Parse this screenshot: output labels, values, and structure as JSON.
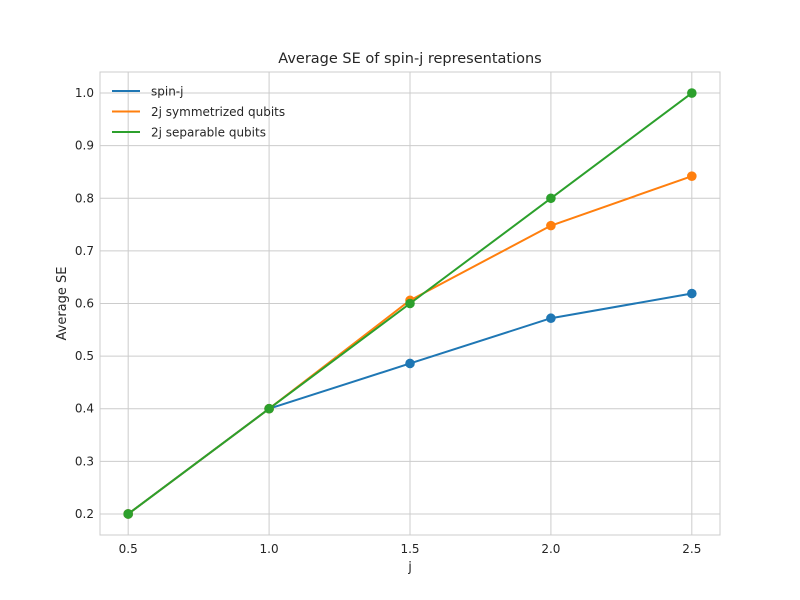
{
  "chart_data": {
    "type": "line",
    "title": "Average SE of spin-j representations",
    "xlabel": "j",
    "ylabel": "Average SE",
    "x": [
      0.5,
      1.0,
      1.5,
      2.0,
      2.5
    ],
    "x_ticks": [
      "0.5",
      "1.0",
      "1.5",
      "2.0",
      "2.5"
    ],
    "y_ticks": [
      "0.2",
      "0.3",
      "0.4",
      "0.5",
      "0.6",
      "0.7",
      "0.8",
      "0.9",
      "1.0"
    ],
    "xlim": [
      0.4,
      2.6
    ],
    "ylim": [
      0.16,
      1.04
    ],
    "grid": true,
    "legend_position": "top-left",
    "series": [
      {
        "name": "spin-j",
        "color": "#1f77b4",
        "values": [
          0.2,
          0.4,
          0.486,
          0.572,
          0.619
        ]
      },
      {
        "name": "2j symmetrized qubits",
        "color": "#ff7f0e",
        "values": [
          0.2,
          0.4,
          0.606,
          0.748,
          0.842
        ]
      },
      {
        "name": "2j separable qubits",
        "color": "#2ca02c",
        "values": [
          0.2,
          0.4,
          0.6,
          0.8,
          1.0
        ]
      }
    ]
  }
}
